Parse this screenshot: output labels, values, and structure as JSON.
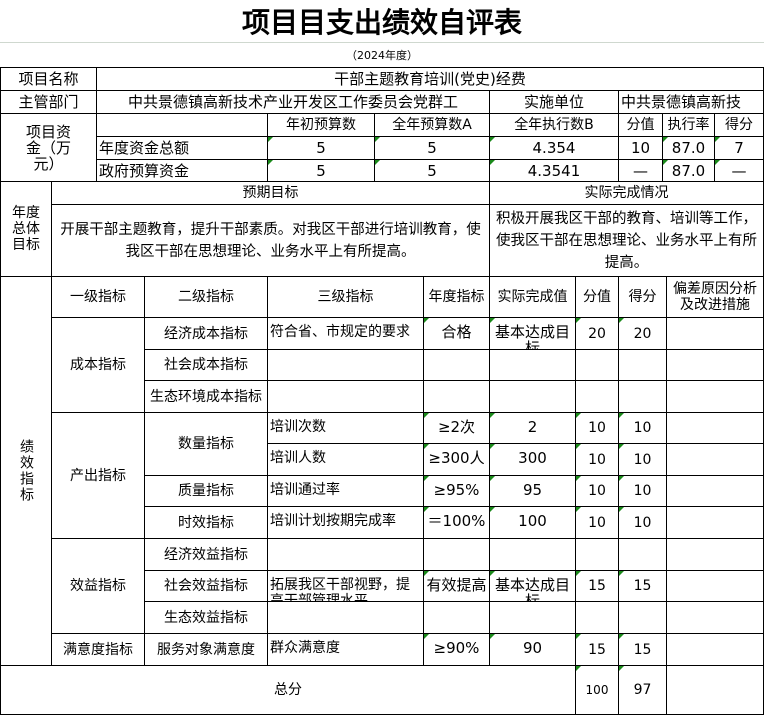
{
  "title": "项目目支出绩效自评表",
  "year": "（2024年度）",
  "project": {
    "name_label": "项目名称",
    "name": "干部主题教育培训(党史)经费"
  },
  "department": {
    "label": "主管部门",
    "value": "中共景德镇高新技术产业开发区工作委员会党群工",
    "impl_label": "实施单位",
    "impl_value": "中共景德镇高新技"
  },
  "funds": {
    "label": "项目资金（万元）",
    "headers": [
      "年初预算数",
      "全年预算数A",
      "全年执行数B",
      "分值",
      "执行率",
      "得分"
    ],
    "rows": [
      {
        "name": "年度资金总额",
        "values": [
          "5",
          "5",
          "4.354",
          "10",
          "87.0",
          "7"
        ]
      },
      {
        "name": "政府预算资金",
        "values": [
          "5",
          "5",
          "4.3541",
          "—",
          "87.0",
          "—"
        ]
      }
    ]
  },
  "goals": {
    "label": "年度总体目标",
    "expected_label": "预期目标",
    "actual_label": "实际完成情况",
    "expected": "开展干部主题教育，提升干部素质。对我区干部进行培训教育，使我区干部在思想理论、业务水平上有所提高。",
    "actual": "积极开展我区干部的教育、培训等工作，使我区干部在思想理论、业务水平上有所提高。"
  },
  "indicators": {
    "label": "绩效指标",
    "headers": [
      "一级指标",
      "二级指标",
      "三级指标",
      "年度指标",
      "实际完成值",
      "分值",
      "得分",
      "偏差原因分析及改进措施"
    ],
    "level1": [
      "成本指标",
      "产出指标",
      "效益指标",
      "满意度指标"
    ],
    "rows": [
      {
        "l2": "经济成本指标",
        "l3": "符合省、市规定的要求",
        "target": "合格",
        "actual": "基本达成目标",
        "score": "20",
        "got": "20",
        "note": ""
      },
      {
        "l2": "社会成本指标",
        "l3": "",
        "target": "",
        "actual": "",
        "score": "",
        "got": "",
        "note": ""
      },
      {
        "l2": "生态环境成本指标",
        "l3": "",
        "target": "",
        "actual": "",
        "score": "",
        "got": "",
        "note": ""
      },
      {
        "l2": "数量指标",
        "l3": "培训次数",
        "target": "≥2次",
        "actual": "2",
        "score": "10",
        "got": "10",
        "note": ""
      },
      {
        "l2": "",
        "l3": "培训人数",
        "target": "≥300人",
        "actual": "300",
        "score": "10",
        "got": "10",
        "note": ""
      },
      {
        "l2": "质量指标",
        "l3": "培训通过率",
        "target": "≥95%",
        "actual": "95",
        "score": "10",
        "got": "10",
        "note": ""
      },
      {
        "l2": "时效指标",
        "l3": "培训计划按期完成率",
        "target": "＝100%",
        "actual": "100",
        "score": "10",
        "got": "10",
        "note": ""
      },
      {
        "l2": "经济效益指标",
        "l3": "",
        "target": "",
        "actual": "",
        "score": "",
        "got": "",
        "note": ""
      },
      {
        "l2": "社会效益指标",
        "l3": "拓展我区干部视野，提高干部管理水平",
        "target": "有效提高",
        "actual": "基本达成目标",
        "score": "15",
        "got": "15",
        "note": ""
      },
      {
        "l2": "生态效益指标",
        "l3": "",
        "target": "",
        "actual": "",
        "score": "",
        "got": "",
        "note": ""
      },
      {
        "l2": "服务对象满意度",
        "l3": "群众满意度",
        "target": "≥90%",
        "actual": "90",
        "score": "15",
        "got": "15",
        "note": ""
      }
    ]
  },
  "total": {
    "label": "总分",
    "score": "100",
    "got": "97"
  }
}
